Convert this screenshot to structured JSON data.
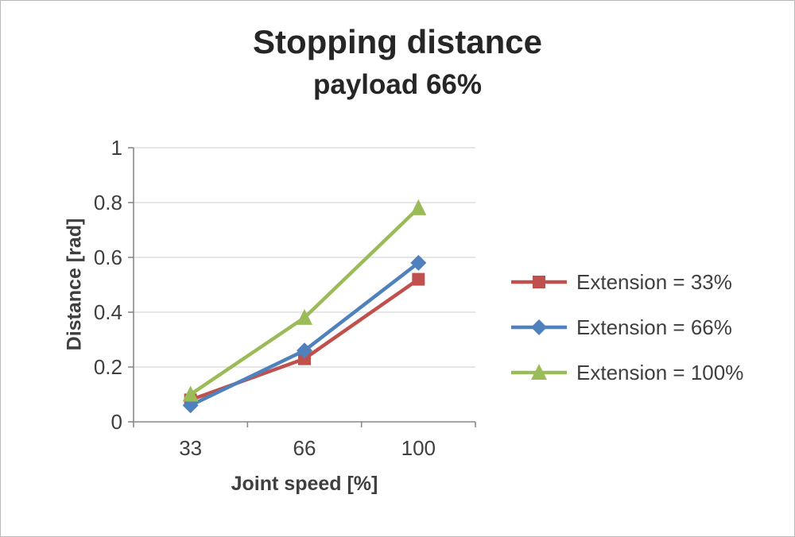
{
  "chart_data": {
    "type": "line",
    "title": "Stopping distance",
    "subtitle": "payload 66%",
    "xlabel": "Joint speed [%]",
    "ylabel": "Distance [rad]",
    "categories": [
      "33",
      "66",
      "100"
    ],
    "series": [
      {
        "name": "Extension = 33%",
        "color": "#c0504d",
        "marker": "square",
        "values": [
          0.08,
          0.23,
          0.52
        ]
      },
      {
        "name": "Extension = 66%",
        "color": "#4f81bd",
        "marker": "diamond",
        "values": [
          0.06,
          0.26,
          0.58
        ]
      },
      {
        "name": "Extension = 100%",
        "color": "#9bbb59",
        "marker": "triangle",
        "values": [
          0.1,
          0.38,
          0.78
        ]
      }
    ],
    "ylim": [
      0,
      1
    ],
    "ytick_step": 0.2,
    "yticks": [
      "0",
      "0.2",
      "0.4",
      "0.6",
      "0.8",
      "1"
    ],
    "grid": true,
    "legend_position": "right",
    "colors": {
      "grid": "#d6d6d6",
      "axis": "#898989",
      "text": "#3f3f3f"
    }
  }
}
